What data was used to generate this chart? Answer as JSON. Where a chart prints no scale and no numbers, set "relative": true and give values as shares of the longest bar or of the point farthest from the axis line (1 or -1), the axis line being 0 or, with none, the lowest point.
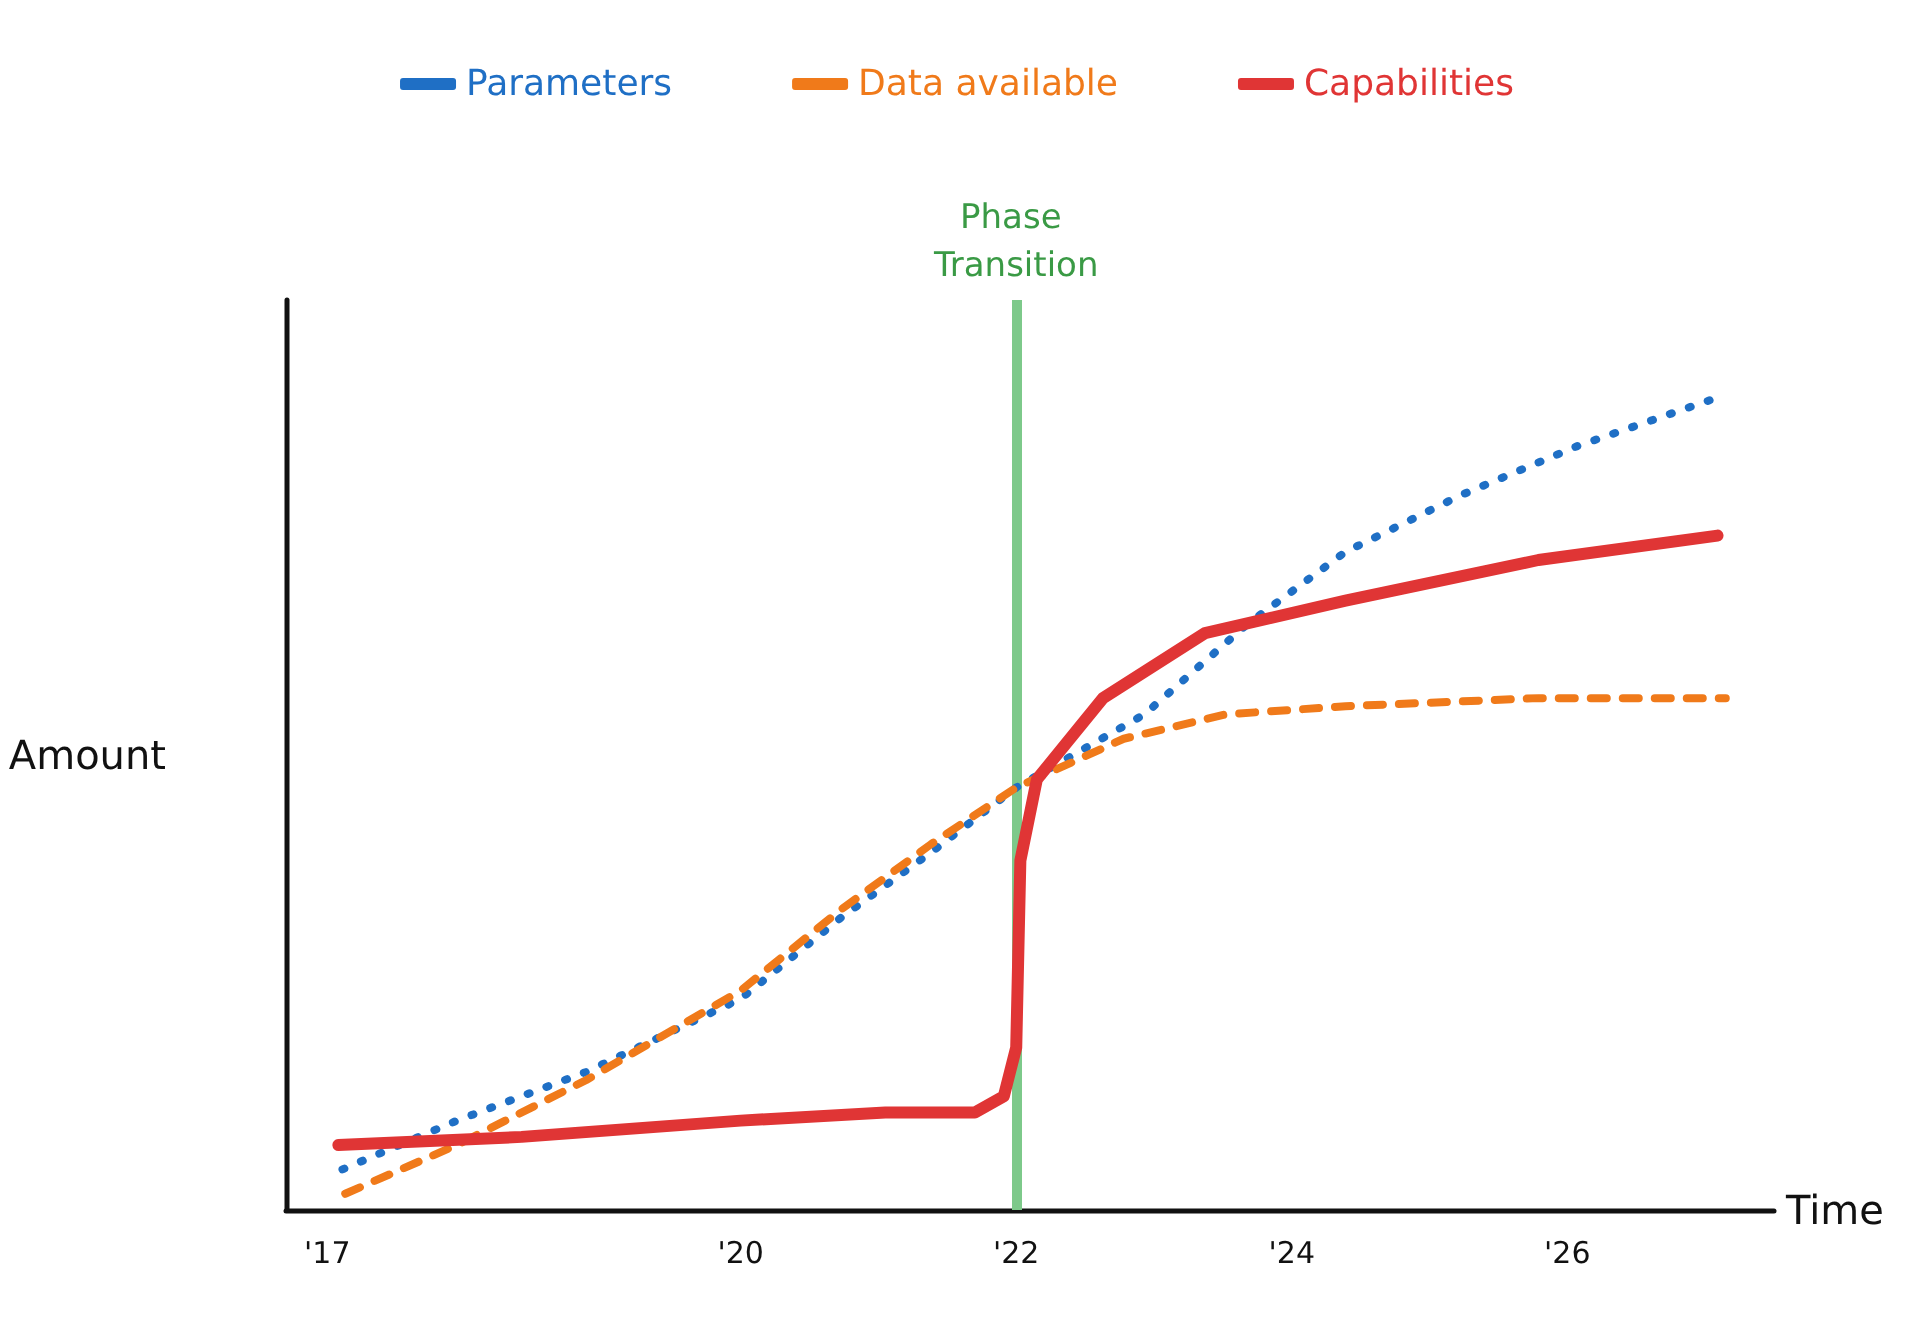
{
  "chart_data": {
    "type": "line",
    "relative": true,
    "xlabel": "Time",
    "ylabel": "Amount",
    "xlim": [
      2016.7,
      2027.5
    ],
    "xticks": [
      {
        "value": 2017,
        "label": "'17"
      },
      {
        "value": 2020,
        "label": "'20"
      },
      {
        "value": 2022,
        "label": "'22"
      },
      {
        "value": 2024,
        "label": "'24"
      },
      {
        "value": 2026,
        "label": "'26"
      }
    ],
    "series": [
      {
        "name": "Parameters",
        "color": "#1f6fc5",
        "line_style": "dotted",
        "x": [
          2017.11,
          2017.94,
          2018.88,
          2020,
          2020.73,
          2021.38,
          2022,
          2022.93,
          2023.67,
          2024.39,
          2025.23,
          2026.07,
          2027.09
        ],
        "values": [
          0.05,
          0.11,
          0.17,
          0.26,
          0.36,
          0.44,
          0.52,
          0.61,
          0.72,
          0.81,
          0.88,
          0.94,
          1
        ]
      },
      {
        "name": "Data available",
        "color": "#f07a1a",
        "line_style": "dashed",
        "x": [
          2017.13,
          2017.94,
          2018.88,
          2020,
          2020.73,
          2021.38,
          2022,
          2022.78,
          2023.52,
          2024.39,
          2025.79,
          2027.15
        ],
        "values": [
          0.02,
          0.08,
          0.16,
          0.27,
          0.37,
          0.45,
          0.52,
          0.58,
          0.61,
          0.62,
          0.63,
          0.63
        ]
      },
      {
        "name": "Capabilities",
        "color": "#e03535",
        "line_style": "solid",
        "x": [
          2017.08,
          2018.41,
          2020,
          2021.05,
          2021.7,
          2021.91,
          2022,
          2022.03,
          2022.15,
          2022.63,
          2023.37,
          2024.39,
          2025.79,
          2027.09
        ],
        "values": [
          0.08,
          0.09,
          0.11,
          0.12,
          0.12,
          0.14,
          0.2,
          0.43,
          0.53,
          0.63,
          0.71,
          0.75,
          0.8,
          0.83
        ]
      }
    ],
    "ref_lines": [
      {
        "axis": "x",
        "value": 2022,
        "label": "Phase Transition",
        "color": "#7dc98a"
      }
    ],
    "marker": "none",
    "grid": false,
    "legend": "top"
  }
}
